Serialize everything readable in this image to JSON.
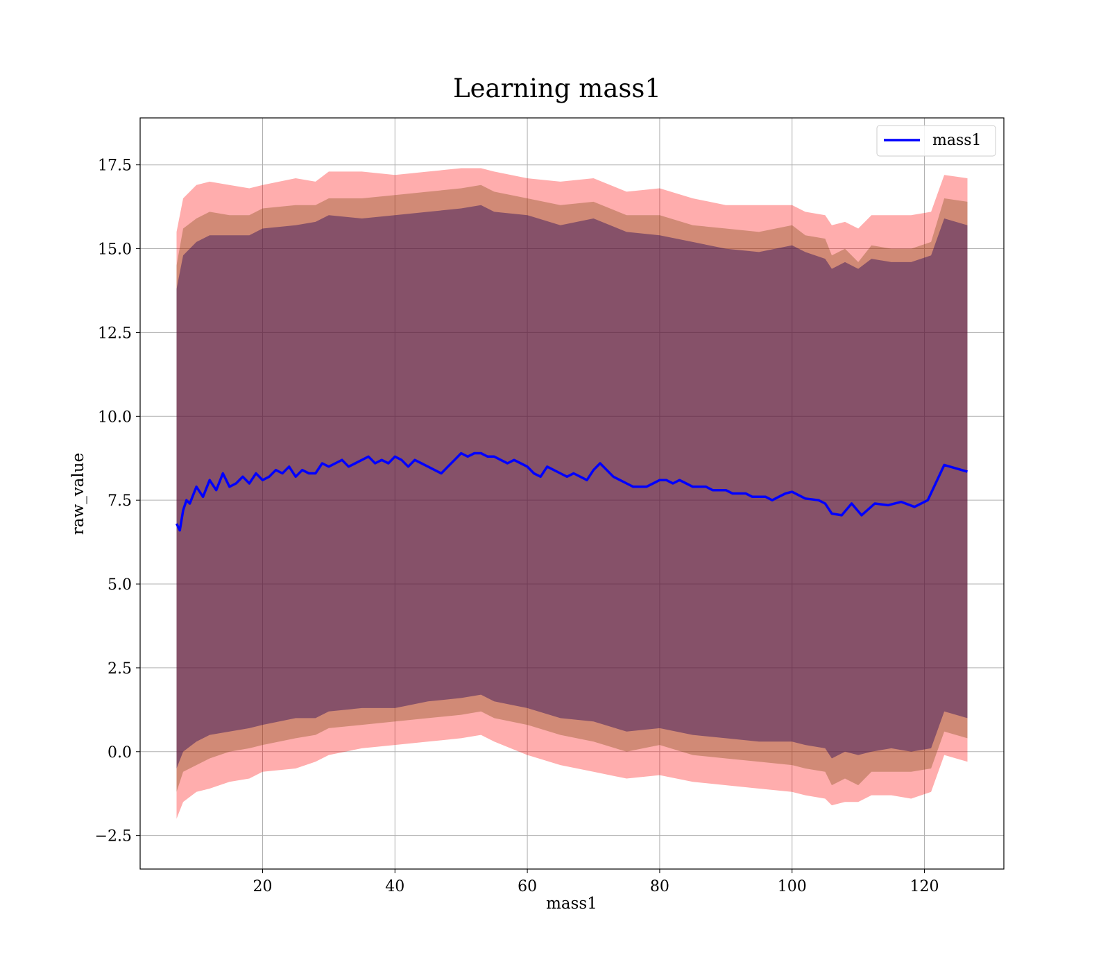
{
  "chart_data": {
    "type": "line",
    "title": "Learning mass1",
    "xlabel": "mass1",
    "ylabel": "raw_value",
    "xlim": [
      1.5,
      132
    ],
    "ylim": [
      -3.5,
      18.9
    ],
    "xticks": [
      20,
      40,
      60,
      80,
      100,
      120
    ],
    "yticks": [
      -2.5,
      0.0,
      2.5,
      5.0,
      7.5,
      10.0,
      12.5,
      15.0,
      17.5
    ],
    "xtick_labels": [
      "20",
      "40",
      "60",
      "80",
      "100",
      "120"
    ],
    "ytick_labels": [
      "−2.5",
      "0.0",
      "2.5",
      "5.0",
      "7.5",
      "10.0",
      "12.5",
      "15.0",
      "17.5"
    ],
    "grid": true,
    "legend": {
      "position": "top-right",
      "entries": [
        "mass1"
      ]
    },
    "colors": {
      "line": "#0000ff",
      "band": "#ff0000",
      "band_inner": "#2a0a5a"
    },
    "series": [
      {
        "name": "mass1",
        "x": [
          7,
          7.5,
          8,
          8.5,
          9,
          10,
          11,
          12,
          13,
          14,
          15,
          16,
          17,
          18,
          19,
          20,
          21,
          22,
          23,
          24,
          25,
          26,
          27,
          28,
          29,
          30,
          31,
          32,
          33,
          34,
          35,
          36,
          37,
          38,
          39,
          40,
          41,
          42,
          43,
          44,
          45,
          46,
          47,
          48,
          49,
          50,
          51,
          52,
          53,
          54,
          55,
          56,
          57,
          58,
          59,
          60,
          61,
          62,
          63,
          64,
          65,
          66,
          67,
          68,
          69,
          70,
          71,
          72,
          73,
          74,
          75,
          76,
          77,
          78,
          79,
          80,
          81,
          82,
          83,
          84,
          85,
          86,
          87,
          88,
          89,
          90,
          91,
          92,
          93,
          94,
          95,
          96,
          97,
          98,
          99,
          100,
          102,
          104,
          105,
          106,
          107.5,
          109,
          110.5,
          112.5,
          114.5,
          116.5,
          118.5,
          120.5,
          123,
          126.5
        ],
        "y": [
          6.8,
          6.6,
          7.2,
          7.5,
          7.4,
          7.9,
          7.6,
          8.1,
          7.8,
          8.3,
          7.9,
          8.0,
          8.2,
          8.0,
          8.3,
          8.1,
          8.2,
          8.4,
          8.3,
          8.5,
          8.2,
          8.4,
          8.3,
          8.3,
          8.6,
          8.5,
          8.6,
          8.7,
          8.5,
          8.6,
          8.7,
          8.8,
          8.6,
          8.7,
          8.6,
          8.8,
          8.7,
          8.5,
          8.7,
          8.6,
          8.5,
          8.4,
          8.3,
          8.5,
          8.7,
          8.9,
          8.8,
          8.9,
          8.9,
          8.8,
          8.8,
          8.7,
          8.6,
          8.7,
          8.6,
          8.5,
          8.3,
          8.2,
          8.5,
          8.4,
          8.3,
          8.2,
          8.3,
          8.2,
          8.1,
          8.4,
          8.6,
          8.4,
          8.2,
          8.1,
          8.0,
          7.9,
          7.9,
          7.9,
          8.0,
          8.1,
          8.1,
          8.0,
          8.1,
          8.0,
          7.9,
          7.9,
          7.9,
          7.8,
          7.8,
          7.8,
          7.7,
          7.7,
          7.7,
          7.6,
          7.6,
          7.6,
          7.5,
          7.6,
          7.7,
          7.75,
          7.55,
          7.5,
          7.4,
          7.1,
          7.05,
          7.4,
          7.05,
          7.4,
          7.35,
          7.45,
          7.3,
          7.5,
          8.55,
          8.35
        ]
      }
    ],
    "bands": [
      {
        "name": "outer",
        "x": [
          7,
          8,
          10,
          12,
          15,
          18,
          20,
          25,
          28,
          30,
          35,
          40,
          45,
          50,
          53,
          55,
          60,
          65,
          70,
          75,
          80,
          85,
          90,
          95,
          100,
          102,
          105,
          106,
          108,
          110,
          112,
          115,
          118,
          121,
          123,
          126.5
        ],
        "upper": [
          15.5,
          16.5,
          16.9,
          17.0,
          16.9,
          16.8,
          16.9,
          17.1,
          17.0,
          17.3,
          17.3,
          17.2,
          17.3,
          17.4,
          17.4,
          17.3,
          17.1,
          17.0,
          17.1,
          16.7,
          16.8,
          16.5,
          16.3,
          16.3,
          16.3,
          16.1,
          16.0,
          15.7,
          15.8,
          15.6,
          16.0,
          16.0,
          16.0,
          16.1,
          17.2,
          17.1
        ],
        "lower": [
          -2.0,
          -1.5,
          -1.2,
          -1.1,
          -0.9,
          -0.8,
          -0.6,
          -0.5,
          -0.3,
          -0.1,
          0.1,
          0.2,
          0.3,
          0.4,
          0.5,
          0.3,
          -0.1,
          -0.4,
          -0.6,
          -0.8,
          -0.7,
          -0.9,
          -1.0,
          -1.1,
          -1.2,
          -1.3,
          -1.4,
          -1.6,
          -1.5,
          -1.5,
          -1.3,
          -1.3,
          -1.4,
          -1.2,
          -0.1,
          -0.3
        ]
      },
      {
        "name": "middle",
        "x": [
          7,
          8,
          10,
          12,
          15,
          18,
          20,
          25,
          28,
          30,
          35,
          40,
          45,
          50,
          53,
          55,
          60,
          65,
          70,
          75,
          80,
          85,
          90,
          95,
          100,
          102,
          105,
          106,
          108,
          110,
          112,
          115,
          118,
          121,
          123,
          126.5
        ],
        "upper": [
          14.5,
          15.6,
          15.9,
          16.1,
          16.0,
          16.0,
          16.2,
          16.3,
          16.3,
          16.5,
          16.5,
          16.6,
          16.7,
          16.8,
          16.9,
          16.7,
          16.5,
          16.3,
          16.4,
          16.0,
          16.0,
          15.7,
          15.6,
          15.5,
          15.7,
          15.4,
          15.3,
          14.8,
          15.0,
          14.6,
          15.1,
          15.0,
          15.0,
          15.2,
          16.5,
          16.4
        ],
        "lower": [
          -1.2,
          -0.6,
          -0.4,
          -0.2,
          0.0,
          0.1,
          0.2,
          0.4,
          0.5,
          0.7,
          0.8,
          0.9,
          1.0,
          1.1,
          1.2,
          1.0,
          0.8,
          0.5,
          0.3,
          0.0,
          0.2,
          -0.1,
          -0.2,
          -0.3,
          -0.4,
          -0.5,
          -0.6,
          -1.0,
          -0.8,
          -1.0,
          -0.6,
          -0.6,
          -0.6,
          -0.5,
          0.6,
          0.4
        ]
      },
      {
        "name": "inner",
        "x": [
          7,
          8,
          10,
          12,
          15,
          18,
          20,
          25,
          28,
          30,
          35,
          40,
          45,
          50,
          53,
          55,
          60,
          65,
          70,
          75,
          80,
          85,
          90,
          95,
          100,
          102,
          105,
          106,
          108,
          110,
          112,
          115,
          118,
          121,
          123,
          126.5
        ],
        "upper": [
          13.8,
          14.8,
          15.2,
          15.4,
          15.4,
          15.4,
          15.6,
          15.7,
          15.8,
          16.0,
          15.9,
          16.0,
          16.1,
          16.2,
          16.3,
          16.1,
          16.0,
          15.7,
          15.9,
          15.5,
          15.4,
          15.2,
          15.0,
          14.9,
          15.1,
          14.9,
          14.7,
          14.4,
          14.6,
          14.4,
          14.7,
          14.6,
          14.6,
          14.8,
          15.9,
          15.7
        ],
        "lower": [
          -0.5,
          0.0,
          0.3,
          0.5,
          0.6,
          0.7,
          0.8,
          1.0,
          1.0,
          1.2,
          1.3,
          1.3,
          1.5,
          1.6,
          1.7,
          1.5,
          1.3,
          1.0,
          0.9,
          0.6,
          0.7,
          0.5,
          0.4,
          0.3,
          0.3,
          0.2,
          0.1,
          -0.2,
          0.0,
          -0.1,
          0.0,
          0.1,
          0.0,
          0.1,
          1.2,
          1.0
        ]
      }
    ]
  }
}
